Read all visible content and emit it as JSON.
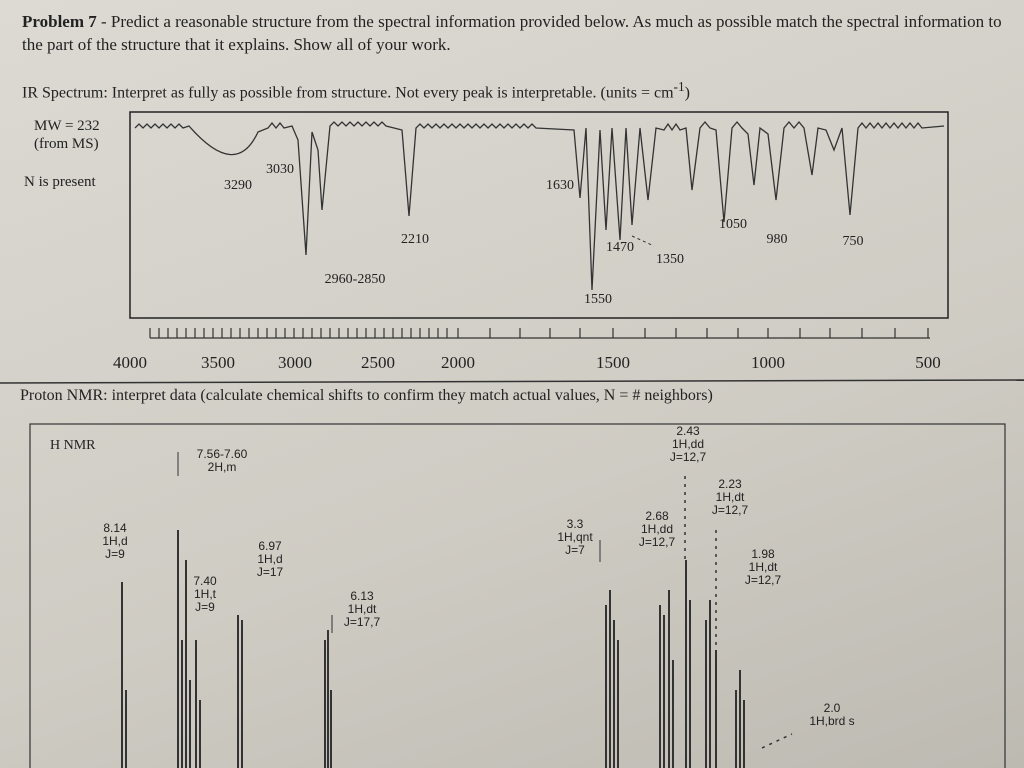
{
  "header": {
    "problem": "Problem 7",
    "instructions": "- Predict a reasonable structure from the spectral information provided below. As much as possible match the spectral information to the part of the structure that it explains. Show all of your work."
  },
  "ir": {
    "title": "IR Spectrum: Interpret as fully as possible from structure. Not every peak is interpretable. (units = cm",
    "title_sup": "-1",
    "title_end": ")",
    "notes": [
      "MW = 232",
      "(from MS)",
      "N is present"
    ],
    "peak_labels": [
      "3290",
      "3030",
      "2960-2850",
      "2210",
      "1630",
      "1550",
      "1470",
      "1350",
      "1050",
      "980",
      "750"
    ],
    "axis_labels": [
      "4000",
      "3500",
      "3000",
      "2500",
      "2000",
      "1500",
      "1000",
      "500"
    ]
  },
  "nmr": {
    "title": "Proton NMR: interpret data (calculate chemical shifts to confirm they match actual values, N = # neighbors)",
    "label": "H NMR",
    "peaks": [
      [
        "8.14",
        "1H,d",
        "J=9"
      ],
      [
        "7.56-7.60",
        "2H,m"
      ],
      [
        "7.40",
        "1H,t",
        "J=9"
      ],
      [
        "6.97",
        "1H,d",
        "J=17"
      ],
      [
        "6.13",
        "1H,dt",
        "J=17,7"
      ],
      [
        "3.3",
        "1H,qnt",
        "J=7"
      ],
      [
        "2.68",
        "1H,dd",
        "J=12,7"
      ],
      [
        "2.43",
        "1H,dd",
        "J=12,7"
      ],
      [
        "2.23",
        "1H,dt",
        "J=12,7"
      ],
      [
        "1.98",
        "1H,dt",
        "J=12,7"
      ],
      [
        "2.0",
        "1H,brd s"
      ]
    ]
  }
}
